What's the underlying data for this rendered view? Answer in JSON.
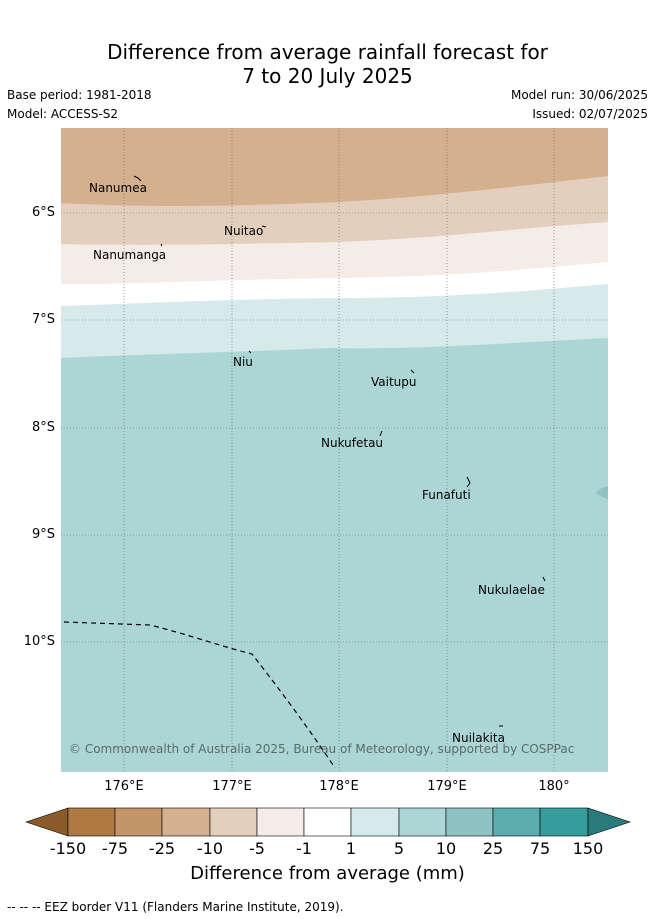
{
  "title_line1": "Difference from average rainfall forecast for",
  "title_line2": "7 to 20 July 2025",
  "base_period": "Base period: 1981-2018",
  "model": "Model: ACCESS-S2",
  "model_run": "Model run: 30/06/2025",
  "issued": "Issued: 02/07/2025",
  "lat_labels": [
    "6°S",
    "7°S",
    "8°S",
    "9°S",
    "10°S"
  ],
  "lon_labels": [
    "176°E",
    "177°E",
    "178°E",
    "179°E",
    "180°"
  ],
  "places": {
    "nanumea": "Nanumea",
    "nuitao": "Nuitao",
    "nanumanga": "Nanumanga",
    "niu": "Niu",
    "vaitupu": "Vaitupu",
    "nukufetau": "Nukufetau",
    "funafuti": "Funafuti",
    "nukulaelae": "Nukulaelae",
    "nuilakita": "Nuilakita"
  },
  "copyright": "© Commonwealth of Australia 2025, Bureau of Meteorology, supported by COSPPac",
  "colorbar": {
    "ticks": [
      "-150",
      "-75",
      "-25",
      "-10",
      "-5",
      "-1",
      "1",
      "5",
      "10",
      "25",
      "75",
      "150"
    ],
    "colors": [
      "#8b5a2b",
      "#b07a45",
      "#c4956a",
      "#d4b08e",
      "#e3cfbd",
      "#f4ece6",
      "#ffffff",
      "#d6eaea",
      "#acd6d6",
      "#8fc2c2",
      "#5cadad",
      "#379c9c",
      "#2a7b7b"
    ],
    "label": "Difference from average (mm)"
  },
  "footnote": "-- -- -- EEZ border V11 (Flanders Marine Institute, 2019)."
}
